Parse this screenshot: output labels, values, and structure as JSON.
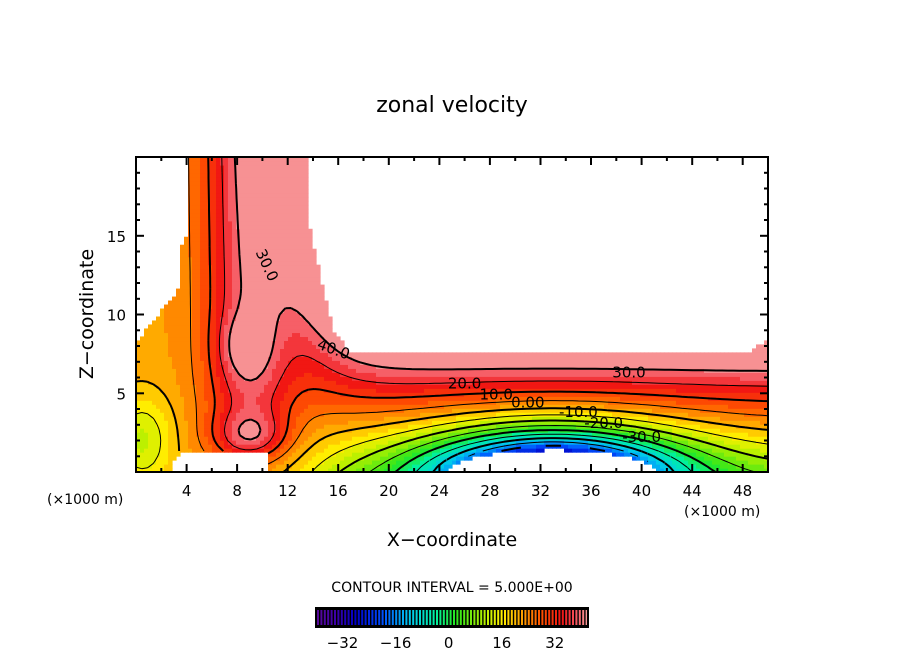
{
  "chart_data": {
    "type": "heatmap",
    "subtype": "filled-contour",
    "title": "zonal velocity",
    "xlabel": "X−coordinate",
    "ylabel": "Z−coordinate",
    "x_unit_left": "(×1000 m)",
    "x_unit_right": "(×1000 m)",
    "xlim": [
      0,
      50
    ],
    "ylim": [
      0,
      20
    ],
    "x_ticks": [
      "4",
      "8",
      "12",
      "16",
      "20",
      "24",
      "28",
      "32",
      "36",
      "40",
      "44",
      "48"
    ],
    "x_tick_values": [
      4,
      8,
      12,
      16,
      20,
      24,
      28,
      32,
      36,
      40,
      44,
      48
    ],
    "y_ticks": [
      "5",
      "10",
      "15"
    ],
    "y_tick_values": [
      5,
      10,
      15
    ],
    "contour_interval_label": "CONTOUR INTERVAL = 5.000E+00",
    "contour_interval": 5,
    "contour_labels": [
      {
        "text": "30.0",
        "x": 10,
        "y": 13
      },
      {
        "text": "40.0",
        "x": 15.5,
        "y": 7.5
      },
      {
        "text": "30.0",
        "x": 39,
        "y": 6
      },
      {
        "text": "20.0",
        "x": 26,
        "y": 5.3
      },
      {
        "text": "10.0",
        "x": 28.5,
        "y": 4.6
      },
      {
        "text": "0.00",
        "x": 31,
        "y": 4.1
      },
      {
        "text": "-10.0",
        "x": 35,
        "y": 3.5
      },
      {
        "text": "-20.0",
        "x": 37,
        "y": 2.8
      },
      {
        "text": "-30.0",
        "x": 40,
        "y": 1.9
      }
    ],
    "colorbar": {
      "min": -40,
      "max": 42,
      "tick_labels": [
        "−32",
        "−16",
        "0",
        "16",
        "32"
      ],
      "tick_values": [
        -32,
        -16,
        0,
        16,
        32
      ]
    },
    "masked_regions": [
      "upper right (undefined)",
      "upper left (undefined)",
      "bottom near x 3-10",
      "bottom near x 25-41"
    ],
    "colors": {
      "frame": "#000000",
      "min_color": "#5a0a9a",
      "zero_color": "#00e070",
      "max_color": "#f89898"
    }
  }
}
